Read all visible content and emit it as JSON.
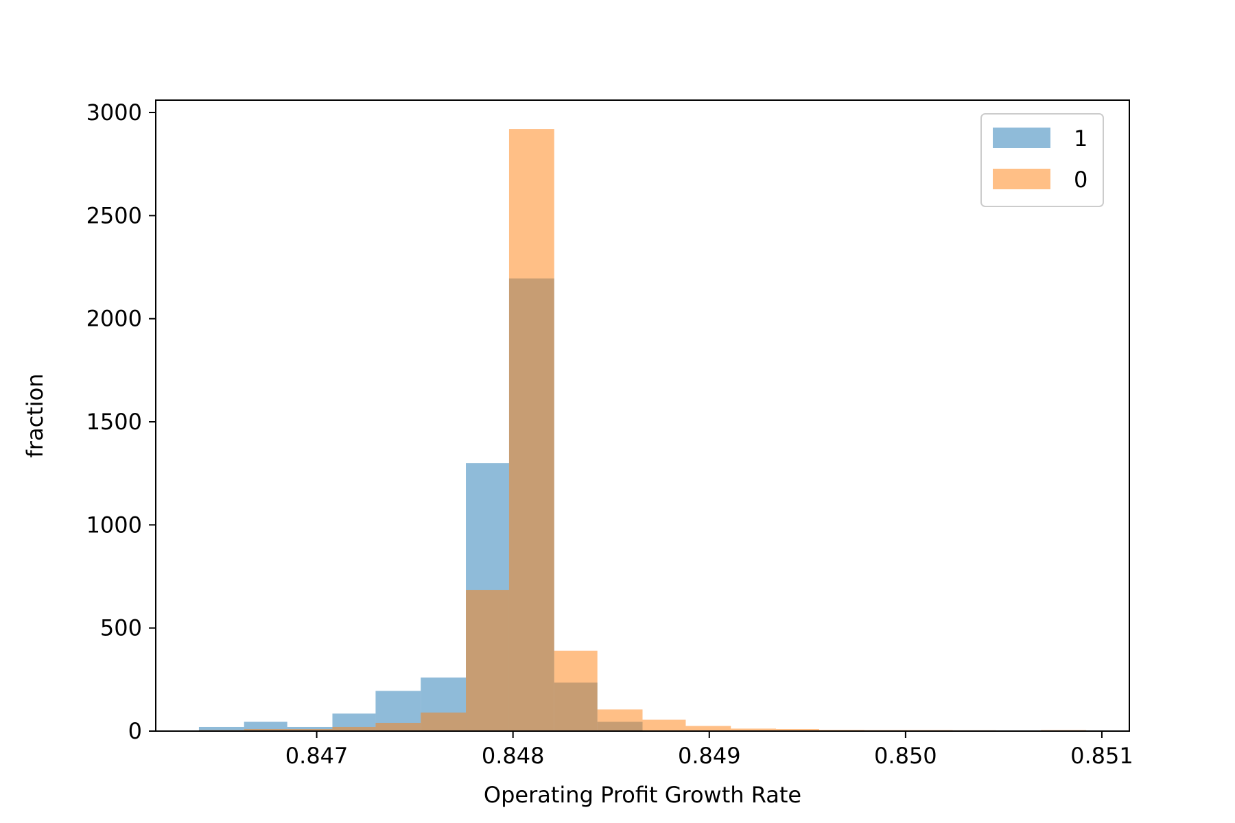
{
  "chart_data": {
    "type": "histogram",
    "xlabel": "Operating Profit Growth Rate",
    "ylabel": "fraction",
    "xlim": [
      0.84618,
      0.85114
    ],
    "ylim": [
      0,
      3060
    ],
    "xticks": [
      0.847,
      0.848,
      0.849,
      0.85,
      0.851
    ],
    "xtick_labels": [
      "0.847",
      "0.848",
      "0.849",
      "0.850",
      "0.851"
    ],
    "yticks": [
      0,
      500,
      1000,
      1500,
      2000,
      2500,
      3000
    ],
    "ytick_labels": [
      "0",
      "500",
      "1000",
      "1500",
      "2000",
      "2500",
      "3000"
    ],
    "grid": false,
    "legend_position": "top-right",
    "series": [
      {
        "name": "1",
        "color": "#1f77b4",
        "opacity": 0.5,
        "bin_edges": [
          0.8464,
          0.84663,
          0.84685,
          0.84708,
          0.8473,
          0.84753,
          0.84776,
          0.84798,
          0.84821,
          0.84843,
          0.84866
        ],
        "counts": [
          20,
          45,
          20,
          85,
          195,
          260,
          1300,
          2195,
          235,
          45
        ]
      },
      {
        "name": "0",
        "color": "#ff7f0e",
        "opacity": 0.5,
        "bin_edges": [
          0.8464,
          0.84663,
          0.84685,
          0.84708,
          0.8473,
          0.84753,
          0.84776,
          0.84798,
          0.84821,
          0.84843,
          0.84866,
          0.84888,
          0.84911,
          0.84934,
          0.84956,
          0.84979,
          0.85001,
          0.85024,
          0.85046,
          0.85069,
          0.85092
        ],
        "counts": [
          5,
          10,
          10,
          20,
          40,
          90,
          685,
          2920,
          390,
          105,
          55,
          25,
          12,
          10,
          6,
          5,
          5,
          4,
          3,
          5
        ]
      }
    ]
  }
}
